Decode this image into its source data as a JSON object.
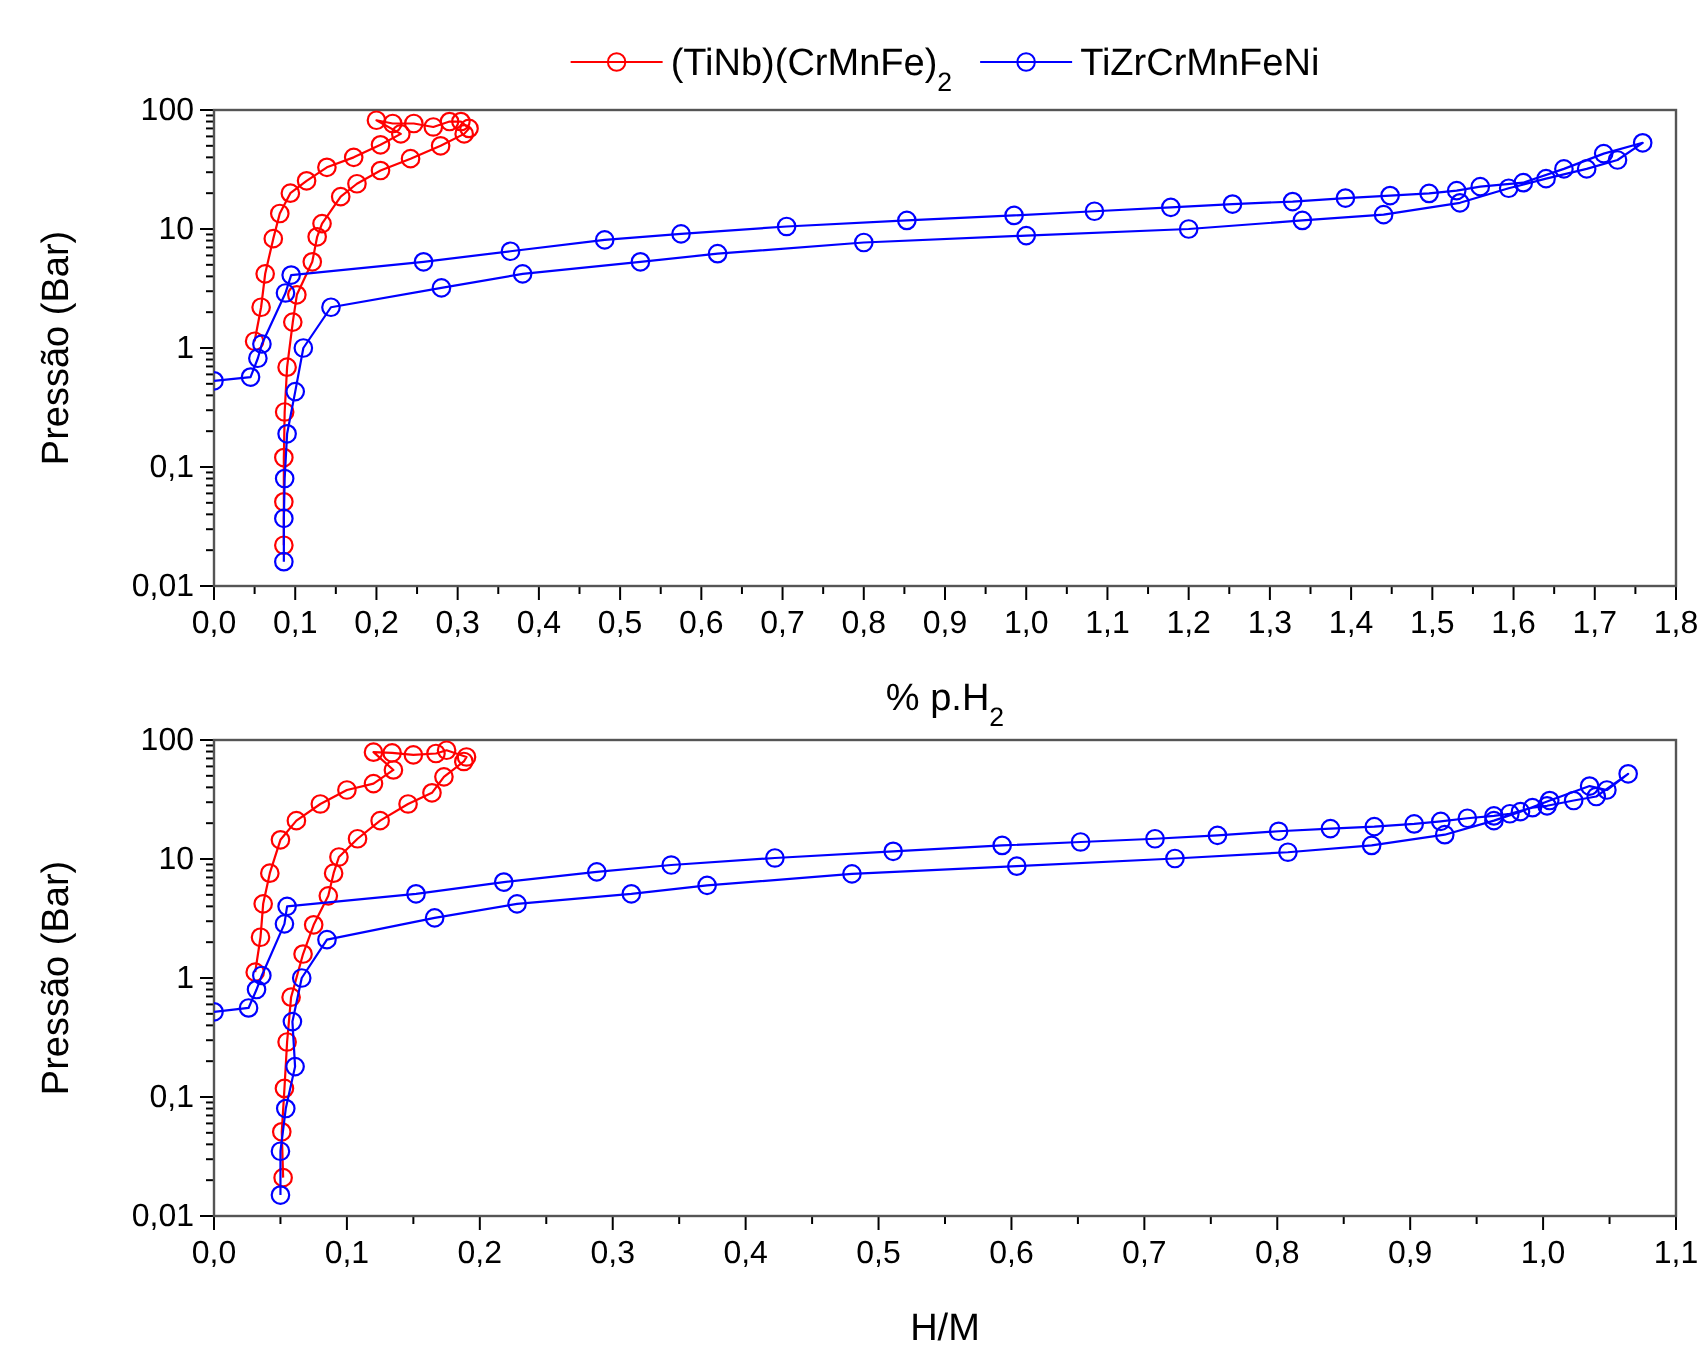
{
  "chart_data": [
    {
      "type": "line",
      "xlabel": "% p.H$_{2}$",
      "ylabel": "Pressão (Bar)",
      "log": "y",
      "marker": "circle",
      "line_style": "solid",
      "legend": "top",
      "grid": false,
      "xlim": [
        0,
        1.8
      ],
      "ylim": [
        0.01,
        100
      ],
      "xticks": [
        {
          "value": 0,
          "label": "0,0"
        },
        {
          "value": 0.05,
          "label": null
        },
        {
          "value": 0.1,
          "label": "0,1"
        },
        {
          "value": 0.15,
          "label": null
        },
        {
          "value": 0.2,
          "label": "0,2"
        },
        {
          "value": 0.25,
          "label": null
        },
        {
          "value": 0.3,
          "label": "0,3"
        },
        {
          "value": 0.35,
          "label": null
        },
        {
          "value": 0.4,
          "label": "0,4"
        },
        {
          "value": 0.45,
          "label": null
        },
        {
          "value": 0.5,
          "label": "0,5"
        },
        {
          "value": 0.55,
          "label": null
        },
        {
          "value": 0.6,
          "label": "0,6"
        },
        {
          "value": 0.65,
          "label": null
        },
        {
          "value": 0.7,
          "label": "0,7"
        },
        {
          "value": 0.75,
          "label": null
        },
        {
          "value": 0.8,
          "label": "0,8"
        },
        {
          "value": 0.85,
          "label": null
        },
        {
          "value": 0.9,
          "label": "0,9"
        },
        {
          "value": 0.95,
          "label": null
        },
        {
          "value": 1.0,
          "label": "1,0"
        },
        {
          "value": 1.05,
          "label": null
        },
        {
          "value": 1.1,
          "label": "1,1"
        },
        {
          "value": 1.15,
          "label": null
        },
        {
          "value": 1.2,
          "label": "1,2"
        },
        {
          "value": 1.25,
          "label": null
        },
        {
          "value": 1.3,
          "label": "1,3"
        },
        {
          "value": 1.35,
          "label": null
        },
        {
          "value": 1.4,
          "label": "1,4"
        },
        {
          "value": 1.45,
          "label": null
        },
        {
          "value": 1.5,
          "label": "1,5"
        },
        {
          "value": 1.55,
          "label": null
        },
        {
          "value": 1.6,
          "label": "1,6"
        },
        {
          "value": 1.65,
          "label": null
        },
        {
          "value": 1.7,
          "label": "1,7"
        },
        {
          "value": 1.75,
          "label": null
        },
        {
          "value": 1.8,
          "label": "1,8"
        }
      ],
      "yticks": [
        {
          "value": 0.01,
          "label": "0,01"
        },
        {
          "value": 0.02,
          "label": null
        },
        {
          "value": 0.03,
          "label": null
        },
        {
          "value": 0.04,
          "label": null
        },
        {
          "value": 0.05,
          "label": null
        },
        {
          "value": 0.06,
          "label": null
        },
        {
          "value": 0.07,
          "label": null
        },
        {
          "value": 0.08,
          "label": null
        },
        {
          "value": 0.09,
          "label": null
        },
        {
          "value": 0.1,
          "label": "0,1"
        },
        {
          "value": 0.2,
          "label": null
        },
        {
          "value": 0.3,
          "label": null
        },
        {
          "value": 0.4,
          "label": null
        },
        {
          "value": 0.5,
          "label": null
        },
        {
          "value": 0.6,
          "label": null
        },
        {
          "value": 0.7,
          "label": null
        },
        {
          "value": 0.8,
          "label": null
        },
        {
          "value": 0.9,
          "label": null
        },
        {
          "value": 1,
          "label": "1"
        },
        {
          "value": 2,
          "label": null
        },
        {
          "value": 3,
          "label": null
        },
        {
          "value": 4,
          "label": null
        },
        {
          "value": 5,
          "label": null
        },
        {
          "value": 6,
          "label": null
        },
        {
          "value": 7,
          "label": null
        },
        {
          "value": 8,
          "label": null
        },
        {
          "value": 9,
          "label": null
        },
        {
          "value": 10,
          "label": "10"
        },
        {
          "value": 20,
          "label": null
        },
        {
          "value": 30,
          "label": null
        },
        {
          "value": 40,
          "label": null
        },
        {
          "value": 50,
          "label": null
        },
        {
          "value": 60,
          "label": null
        },
        {
          "value": 70,
          "label": null
        },
        {
          "value": 80,
          "label": null
        },
        {
          "value": 90,
          "label": null
        },
        {
          "value": 100,
          "label": "100"
        }
      ],
      "series": [
        {
          "name": "(TiNb)(CrMnFe)$_{2}$",
          "color": "#ff0000",
          "x": [
            0.086,
            0.086,
            0.086,
            0.087,
            0.09,
            0.097,
            0.102,
            0.121,
            0.127,
            0.133,
            0.156,
            0.176,
            0.205,
            0.242,
            0.279,
            0.308,
            0.314,
            0.304,
            0.29,
            0.27,
            0.246,
            0.22,
            0.2,
            0.23,
            0.205,
            0.172,
            0.139,
            0.114,
            0.094,
            0.081,
            0.073,
            0.063,
            0.058,
            0.05
          ],
          "values": [
            0.022,
            0.051,
            0.12,
            0.29,
            0.69,
            1.65,
            2.8,
            5.3,
            8.6,
            11.1,
            18.7,
            24,
            31,
            39,
            50,
            63,
            70,
            80,
            80,
            72,
            77,
            77,
            82,
            63,
            51,
            40,
            33,
            25.4,
            20,
            13.5,
            8.3,
            4.2,
            2.2,
            1.14
          ]
        },
        {
          "name": "TiZrCrMnFeNi",
          "color": "#0000ff",
          "x": [
            0.086,
            0.086,
            0.087,
            0.09,
            0.1,
            0.11,
            0.144,
            0.28,
            0.38,
            0.525,
            0.62,
            0.8,
            1.0,
            1.2,
            1.34,
            1.44,
            1.534,
            1.594,
            1.64,
            1.69,
            1.728,
            1.759,
            1.711,
            1.662,
            1.612,
            1.559,
            1.53,
            1.496,
            1.448,
            1.393,
            1.328,
            1.254,
            1.178,
            1.084,
            0.985,
            0.853,
            0.705,
            0.575,
            0.481,
            0.365,
            0.258,
            0.095,
            0.088,
            0.059,
            0.054,
            0.045,
            0
          ],
          "values": [
            0.016,
            0.037,
            0.08,
            0.19,
            0.43,
            1.0,
            2.2,
            3.2,
            4.2,
            5.3,
            6.2,
            7.7,
            8.8,
            10,
            11.8,
            13.2,
            16.6,
            22,
            26.5,
            32,
            38,
            53,
            43,
            32,
            24.5,
            22.7,
            21,
            19.9,
            19.1,
            18.2,
            17,
            16.2,
            15.2,
            14.1,
            13,
            11.8,
            10.5,
            9.1,
            8.1,
            6.5,
            5.3,
            4.1,
            2.9,
            1.08,
            0.82,
            0.57,
            0.53
          ]
        }
      ]
    },
    {
      "type": "line",
      "xlabel": "H/M",
      "ylabel": "Pressão (Bar)",
      "log": "y",
      "marker": "circle",
      "line_style": "solid",
      "legend": false,
      "grid": false,
      "xlim": [
        0,
        1.1
      ],
      "ylim": [
        0.01,
        100
      ],
      "xticks": [
        {
          "value": 0,
          "label": "0,0"
        },
        {
          "value": 0.05,
          "label": null
        },
        {
          "value": 0.1,
          "label": "0,1"
        },
        {
          "value": 0.15,
          "label": null
        },
        {
          "value": 0.2,
          "label": "0,2"
        },
        {
          "value": 0.25,
          "label": null
        },
        {
          "value": 0.3,
          "label": "0,3"
        },
        {
          "value": 0.35,
          "label": null
        },
        {
          "value": 0.4,
          "label": "0,4"
        },
        {
          "value": 0.45,
          "label": null
        },
        {
          "value": 0.5,
          "label": "0,5"
        },
        {
          "value": 0.55,
          "label": null
        },
        {
          "value": 0.6,
          "label": "0,6"
        },
        {
          "value": 0.65,
          "label": null
        },
        {
          "value": 0.7,
          "label": "0,7"
        },
        {
          "value": 0.75,
          "label": null
        },
        {
          "value": 0.8,
          "label": "0,8"
        },
        {
          "value": 0.85,
          "label": null
        },
        {
          "value": 0.9,
          "label": "0,9"
        },
        {
          "value": 0.95,
          "label": null
        },
        {
          "value": 1.0,
          "label": "1,0"
        },
        {
          "value": 1.05,
          "label": null
        },
        {
          "value": 1.1,
          "label": "1,1"
        }
      ],
      "yticks": [
        {
          "value": 0.01,
          "label": "0,01"
        },
        {
          "value": 0.02,
          "label": null
        },
        {
          "value": 0.03,
          "label": null
        },
        {
          "value": 0.04,
          "label": null
        },
        {
          "value": 0.05,
          "label": null
        },
        {
          "value": 0.06,
          "label": null
        },
        {
          "value": 0.07,
          "label": null
        },
        {
          "value": 0.08,
          "label": null
        },
        {
          "value": 0.09,
          "label": null
        },
        {
          "value": 0.1,
          "label": "0,1"
        },
        {
          "value": 0.2,
          "label": null
        },
        {
          "value": 0.3,
          "label": null
        },
        {
          "value": 0.4,
          "label": null
        },
        {
          "value": 0.5,
          "label": null
        },
        {
          "value": 0.6,
          "label": null
        },
        {
          "value": 0.7,
          "label": null
        },
        {
          "value": 0.8,
          "label": null
        },
        {
          "value": 0.9,
          "label": null
        },
        {
          "value": 1,
          "label": "1"
        },
        {
          "value": 2,
          "label": null
        },
        {
          "value": 3,
          "label": null
        },
        {
          "value": 4,
          "label": null
        },
        {
          "value": 5,
          "label": null
        },
        {
          "value": 6,
          "label": null
        },
        {
          "value": 7,
          "label": null
        },
        {
          "value": 8,
          "label": null
        },
        {
          "value": 9,
          "label": null
        },
        {
          "value": 10,
          "label": "10"
        },
        {
          "value": 20,
          "label": null
        },
        {
          "value": 30,
          "label": null
        },
        {
          "value": 40,
          "label": null
        },
        {
          "value": 50,
          "label": null
        },
        {
          "value": 60,
          "label": null
        },
        {
          "value": 70,
          "label": null
        },
        {
          "value": 80,
          "label": null
        },
        {
          "value": 90,
          "label": null
        },
        {
          "value": 100,
          "label": "100"
        }
      ],
      "series": [
        {
          "color": "#ff0000",
          "x": [
            0.052,
            0.051,
            0.053,
            0.055,
            0.058,
            0.067,
            0.075,
            0.086,
            0.09,
            0.094,
            0.108,
            0.125,
            0.146,
            0.164,
            0.173,
            0.188,
            0.19,
            0.175,
            0.167,
            0.15,
            0.134,
            0.12,
            0.135,
            0.12,
            0.1,
            0.08,
            0.062,
            0.05,
            0.042,
            0.037,
            0.035,
            0.031
          ],
          "values": [
            0.021,
            0.051,
            0.118,
            0.29,
            0.69,
            1.59,
            2.8,
            4.9,
            7.6,
            10.4,
            14.8,
            21,
            29,
            36,
            49,
            66,
            72,
            82,
            77,
            75,
            78,
            79,
            56,
            43,
            38,
            29,
            21,
            14.5,
            7.6,
            4.2,
            2.2,
            1.12
          ]
        },
        {
          "color": "#0000ff",
          "x": [
            0.05,
            0.05,
            0.054,
            0.061,
            0.059,
            0.066,
            0.085,
            0.166,
            0.228,
            0.314,
            0.371,
            0.48,
            0.604,
            0.723,
            0.808,
            0.871,
            0.926,
            0.963,
            0.983,
            1.005,
            1.035,
            1.048,
            1.064,
            1.04,
            1.023,
            1.003,
            0.992,
            0.975,
            0.963,
            0.943,
            0.923,
            0.903,
            0.873,
            0.84,
            0.801,
            0.755,
            0.708,
            0.652,
            0.593,
            0.511,
            0.422,
            0.344,
            0.288,
            0.218,
            0.152,
            0.055,
            0.053,
            0.036,
            0.032,
            0.026,
            0
          ],
          "values": [
            0.015,
            0.035,
            0.08,
            0.18,
            0.43,
            1.0,
            2.1,
            3.2,
            4.2,
            5.1,
            6.0,
            7.5,
            8.7,
            10.1,
            11.4,
            13,
            16,
            21,
            25,
            31,
            41,
            38,
            52,
            33.5,
            31,
            28,
            27,
            24,
            23,
            22,
            20.7,
            19.7,
            18.7,
            18,
            17.1,
            15.8,
            14.8,
            13.9,
            13,
            11.6,
            10.2,
            8.9,
            7.8,
            6.4,
            5.1,
            4.0,
            2.85,
            1.05,
            0.8,
            0.56,
            0.52
          ]
        }
      ]
    }
  ]
}
